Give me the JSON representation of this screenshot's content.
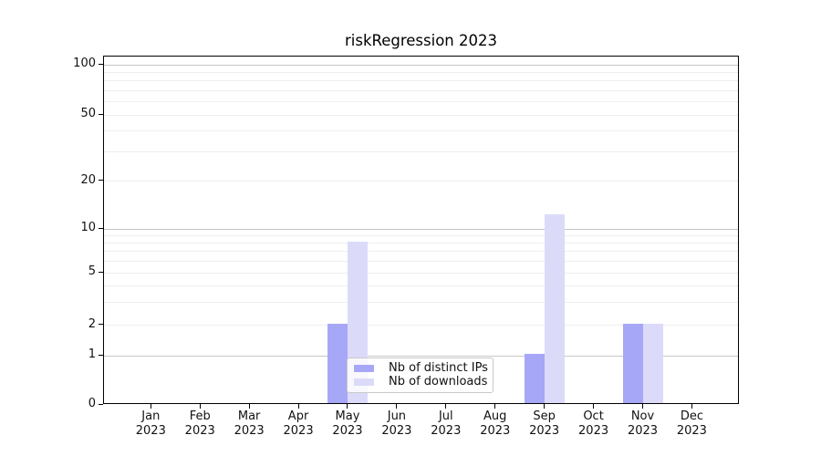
{
  "chart_data": {
    "type": "bar",
    "title": "riskRegression 2023",
    "categories": [
      {
        "month": "Jan",
        "year": "2023"
      },
      {
        "month": "Feb",
        "year": "2023"
      },
      {
        "month": "Mar",
        "year": "2023"
      },
      {
        "month": "Apr",
        "year": "2023"
      },
      {
        "month": "May",
        "year": "2023"
      },
      {
        "month": "Jun",
        "year": "2023"
      },
      {
        "month": "Jul",
        "year": "2023"
      },
      {
        "month": "Aug",
        "year": "2023"
      },
      {
        "month": "Sep",
        "year": "2023"
      },
      {
        "month": "Oct",
        "year": "2023"
      },
      {
        "month": "Nov",
        "year": "2023"
      },
      {
        "month": "Dec",
        "year": "2023"
      }
    ],
    "series": [
      {
        "name": "Nb of distinct IPs",
        "color": "#a7a7f7",
        "values": [
          0,
          0,
          0,
          0,
          2,
          0,
          0,
          0,
          1,
          0,
          2,
          0
        ]
      },
      {
        "name": "Nb of downloads",
        "color": "#dbdbf9",
        "values": [
          0,
          0,
          0,
          0,
          8,
          0,
          0,
          0,
          12,
          0,
          2,
          0
        ]
      }
    ],
    "y_axis": {
      "ticks": [
        0,
        1,
        2,
        5,
        10,
        20,
        50,
        100
      ],
      "major_gridlines": [
        1,
        10,
        100
      ],
      "minor_gridlines": [
        2,
        3,
        4,
        5,
        6,
        7,
        8,
        9,
        20,
        30,
        40,
        50,
        60,
        70,
        80,
        90
      ],
      "scale": "linear 0-1, logarithmic above 1",
      "range": [
        0,
        111
      ]
    },
    "legend_position": "lower center",
    "grid": true
  }
}
